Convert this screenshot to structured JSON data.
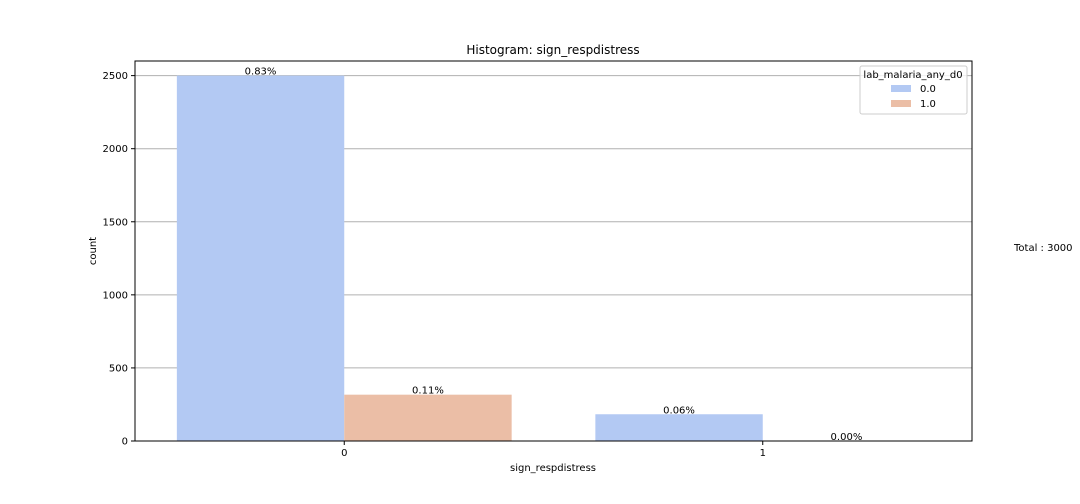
{
  "chart_data": {
    "type": "bar",
    "title": "Histogram: sign_respdistress",
    "xlabel": "sign_respdistress",
    "ylabel": "count",
    "categories": [
      "0",
      "1"
    ],
    "series": [
      {
        "name": "0.0",
        "color": "#b3c9f3",
        "values": [
          2500,
          183
        ]
      },
      {
        "name": "1.0",
        "color": "#ebbea6",
        "values": [
          317,
          0
        ]
      }
    ],
    "data_labels": [
      [
        "0.83%",
        "0.06%"
      ],
      [
        "0.11%",
        "0.00%"
      ]
    ],
    "ylim": [
      0,
      2600
    ],
    "yticks": [
      0,
      500,
      1000,
      1500,
      2000,
      2500
    ],
    "grid": "horizontal",
    "legend": {
      "title": "lab_malaria_any_d0",
      "placement": "top-right"
    },
    "annotation": "Total : 3000"
  }
}
